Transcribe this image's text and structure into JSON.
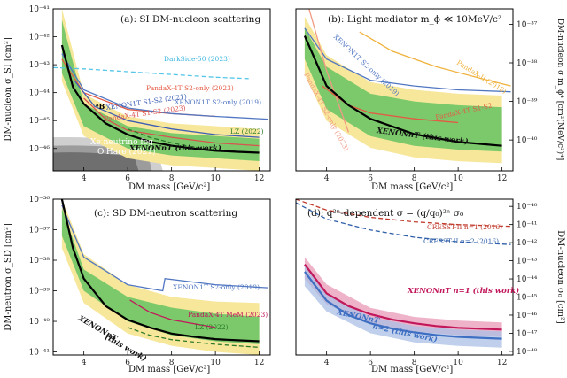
{
  "chart_data": [
    {
      "type": "line",
      "panel": "a",
      "title": "(a): SI DM-nucleon scattering",
      "xlabel": "DM mass [GeV/c²]",
      "ylabel": "DM-nucleon σ_SI [cm²]",
      "xlim": [
        2.6,
        12.5
      ],
      "ylim_log10": [
        -46.8,
        -41
      ],
      "xticks": [
        "4",
        "6",
        "8",
        "10",
        "12"
      ],
      "yticks": [
        "10⁻⁴¹",
        "10⁻⁴²",
        "10⁻⁴³",
        "10⁻⁴⁴",
        "10⁻⁴⁵",
        "10⁻⁴⁶"
      ],
      "fog_label": [
        "Xe neutrino fog",
        "O'Hare (2021)"
      ],
      "boron_label": "⁸B",
      "band2": {
        "x": [
          3,
          4,
          6,
          8,
          10,
          12
        ],
        "lo": [
          -43.6,
          -45.55,
          -46.35,
          -46.6,
          -46.7,
          -46.8
        ],
        "hi": [
          -41,
          -44.05,
          -44.85,
          -45.1,
          -45.2,
          -45.3
        ]
      },
      "band1": {
        "x": [
          3,
          4,
          6,
          8,
          10,
          12
        ],
        "lo": [
          -43.3,
          -45.2,
          -46.0,
          -46.25,
          -46.35,
          -46.45
        ],
        "hi": [
          -41.4,
          -44.4,
          -45.2,
          -45.45,
          -45.55,
          -45.65
        ]
      },
      "series": [
        {
          "name": "XENONnT (this work)",
          "x": [
            3,
            3.5,
            4,
            5,
            6,
            7,
            8,
            9,
            10,
            11,
            12
          ],
          "y": [
            -42.3,
            -43.8,
            -44.4,
            -45.1,
            -45.5,
            -45.75,
            -45.9,
            -46.0,
            -46.08,
            -46.12,
            -46.15
          ],
          "color": "#000000"
        },
        {
          "name": "DarkSide-50 (2023)",
          "x": [
            2.6,
            4,
            6,
            8,
            10,
            11.6
          ],
          "y": [
            -43.1,
            -43.15,
            -43.25,
            -43.35,
            -43.45,
            -43.5
          ],
          "color": "#55c6e8",
          "dash": true
        },
        {
          "name": "PandaX-4T S2-only (2023)",
          "x": [
            3,
            4,
            6,
            8,
            10
          ],
          "y": [
            -42.8,
            -44.0,
            -44.6,
            -44.75,
            -44.85
          ],
          "color": "#e45a43"
        },
        {
          "name": "XENON1T S2-only (2019)",
          "x": [
            3,
            4,
            6,
            8,
            10,
            12.4
          ],
          "y": [
            -42.6,
            -43.9,
            -44.55,
            -44.75,
            -44.85,
            -44.95
          ],
          "color": "#5177c2"
        },
        {
          "name": "XENON1T S1-S2 (2021)",
          "x": [
            3.6,
            4.5,
            6,
            8,
            10,
            12
          ],
          "y": [
            -43.6,
            -44.5,
            -45.0,
            -45.3,
            -45.5,
            -45.6
          ],
          "color": "#3f5fb5"
        },
        {
          "name": "PandaX-4T S1-S2 (2023)",
          "x": [
            4.0,
            5,
            6,
            8,
            10,
            12
          ],
          "y": [
            -44.2,
            -44.95,
            -45.35,
            -45.6,
            -45.8,
            -45.9
          ],
          "color": "#d9534f"
        },
        {
          "name": "LZ (2022)",
          "x": [
            6,
            7,
            8,
            9,
            10,
            11,
            12
          ],
          "y": [
            -45.3,
            -45.6,
            -45.8,
            -45.95,
            -46.05,
            -46.1,
            -46.15
          ],
          "color": "#2a7a2a",
          "dash": true
        }
      ]
    },
    {
      "type": "line",
      "panel": "b",
      "title": "(b): Light mediator m_ϕ ≪ 10MeV/c²",
      "xlabel": "DM mass [GeV/c²]",
      "ylabel": "DM-nucleon σ m_ϕ⁴ [cm²(MeV/c²)⁴]",
      "xlim": [
        2.6,
        12.5
      ],
      "ylim_log10": [
        -40.8,
        -36.6
      ],
      "xticks": [
        "4",
        "6",
        "8",
        "10",
        "12"
      ],
      "yticks": [
        "10⁻³⁷",
        "10⁻³⁸",
        "10⁻³⁹",
        "10⁻⁴⁰"
      ],
      "band2": {
        "x": [
          3,
          4,
          6,
          8,
          10,
          12
        ],
        "lo": [
          -38.3,
          -39.5,
          -40.2,
          -40.45,
          -40.55,
          -40.6
        ],
        "hi": [
          -36.8,
          -37.8,
          -38.5,
          -38.7,
          -38.8,
          -38.85
        ]
      },
      "band1": {
        "x": [
          3,
          4,
          6,
          8,
          10,
          12
        ],
        "lo": [
          -37.9,
          -39.2,
          -39.9,
          -40.15,
          -40.25,
          -40.3
        ],
        "hi": [
          -37.1,
          -38.1,
          -38.8,
          -39.0,
          -39.1,
          -39.15
        ]
      },
      "series": [
        {
          "name": "XENONnT (this work)",
          "x": [
            3,
            4,
            5,
            6,
            7,
            8,
            9,
            10,
            11,
            12
          ],
          "y": [
            -37.3,
            -38.6,
            -39.1,
            -39.45,
            -39.65,
            -39.85,
            -39.95,
            -40.05,
            -40.1,
            -40.15
          ],
          "color": "#000000"
        },
        {
          "name": "XENON1T S2-only (2019)",
          "x": [
            3,
            4,
            6,
            8,
            10,
            12.4
          ],
          "y": [
            -37.1,
            -37.9,
            -38.45,
            -38.6,
            -38.7,
            -38.75
          ],
          "color": "#5177c2"
        },
        {
          "name": "PandaX-II (2018)",
          "x": [
            5.5,
            7,
            9,
            11,
            12.4
          ],
          "y": [
            -37.2,
            -37.7,
            -38.1,
            -38.4,
            -38.6
          ],
          "color": "#f0b23c"
        },
        {
          "name": "PandaX-4T S2-only (2023)",
          "x": [
            3.2,
            4,
            5
          ],
          "y": [
            -36.6,
            -38.2,
            -39.8
          ],
          "color": "#f19a83"
        },
        {
          "name": "PandaX-4T S1-S2 (2023)",
          "x": [
            3.8,
            5,
            6,
            8,
            10
          ],
          "y": [
            -38.6,
            -39.1,
            -39.3,
            -39.45,
            -39.55
          ],
          "color": "#e45a43"
        }
      ]
    },
    {
      "type": "line",
      "panel": "c",
      "title": "(c): SD DM-neutron scattering",
      "xlabel": "DM mass [GeV/c²]",
      "ylabel": "DM-neutron σ_SD [cm²]",
      "xlim": [
        2.6,
        12.5
      ],
      "ylim_log10": [
        -41.1,
        -36
      ],
      "xticks": [
        "4",
        "6",
        "8",
        "10",
        "12"
      ],
      "yticks": [
        "10⁻³⁶",
        "10⁻³⁷",
        "10⁻³⁸",
        "10⁻³⁹",
        "10⁻⁴⁰",
        "10⁻⁴¹"
      ],
      "band2": {
        "x": [
          3,
          4,
          6,
          8,
          10,
          12
        ],
        "lo": [
          -37.6,
          -39.4,
          -40.4,
          -40.8,
          -41.0,
          -41.1
        ],
        "hi": [
          -36,
          -37.8,
          -38.8,
          -39.2,
          -39.35,
          -39.4
        ]
      },
      "band1": {
        "x": [
          3,
          4,
          6,
          8,
          10,
          12
        ],
        "lo": [
          -37.2,
          -39.0,
          -40.0,
          -40.45,
          -40.65,
          -40.75
        ],
        "hi": [
          -36.3,
          -38.3,
          -39.2,
          -39.55,
          -39.75,
          -39.85
        ]
      },
      "series": [
        {
          "name": "XENONnT (this work)",
          "x": [
            3,
            3.5,
            4,
            5,
            6,
            7,
            8,
            9,
            10,
            11,
            12
          ],
          "y": [
            -36.0,
            -37.6,
            -38.6,
            -39.5,
            -39.95,
            -40.2,
            -40.4,
            -40.5,
            -40.58,
            -40.62,
            -40.65
          ],
          "color": "#000000"
        },
        {
          "name": "XENON1T S2-only (2019)",
          "x": [
            3,
            4,
            6,
            7.6,
            7.7,
            10,
            12.4
          ],
          "y": [
            -36.2,
            -37.9,
            -38.8,
            -39.0,
            -38.6,
            -38.8,
            -38.9
          ],
          "color": "#5177c2"
        },
        {
          "name": "PandaX-4T MeM (2023)",
          "x": [
            6.1,
            7,
            8,
            10
          ],
          "y": [
            -39.3,
            -39.7,
            -39.95,
            -40.2
          ],
          "color": "#c2185b"
        },
        {
          "name": "LZ (2022)",
          "x": [
            6,
            7,
            8,
            10,
            12
          ],
          "y": [
            -40.2,
            -40.45,
            -40.6,
            -40.75,
            -40.85
          ],
          "color": "#2a7a2a",
          "dash": true
        }
      ]
    },
    {
      "type": "line",
      "panel": "d",
      "title": "(d): q²ⁿ-dependent σ = (q/q₀)²ⁿ σ₀",
      "xlabel": "DM mass [GeV/c²]",
      "ylabel": "DM-nucleon σ₀ [cm²]",
      "xlim": [
        2.6,
        12.5
      ],
      "ylim_log10": [
        -48.2,
        -39.6
      ],
      "xticks": [
        "4",
        "6",
        "8",
        "10",
        "12"
      ],
      "yticks": [
        "10⁻⁴⁰",
        "10⁻⁴¹",
        "10⁻⁴²",
        "10⁻⁴³",
        "10⁻⁴⁴",
        "10⁻⁴⁵",
        "10⁻⁴⁶",
        "10⁻⁴⁷",
        "10⁻⁴⁸"
      ],
      "series": [
        {
          "name": "CRESST-II n=1 (2016)",
          "x": [
            2.6,
            4,
            6,
            8,
            10,
            12.4
          ],
          "y": [
            -39.6,
            -40.2,
            -40.6,
            -40.85,
            -41.0,
            -41.1
          ],
          "color": "#c0392b",
          "dash": true
        },
        {
          "name": "CRESST-II n=2 (2016)",
          "x": [
            2.6,
            4,
            6,
            8,
            10,
            12.4
          ],
          "y": [
            -39.8,
            -40.7,
            -41.3,
            -41.7,
            -41.95,
            -42.1
          ],
          "color": "#2f5faa",
          "dash": true
        },
        {
          "name": "XENONnT n=1 (this work)",
          "x": [
            3,
            4,
            5,
            6,
            7,
            8,
            9,
            10,
            11,
            12
          ],
          "y": [
            -43.2,
            -44.8,
            -45.5,
            -45.95,
            -46.25,
            -46.45,
            -46.6,
            -46.7,
            -46.75,
            -46.8
          ],
          "color": "#c2185b"
        },
        {
          "name": "XENONnT n=2 (this work)",
          "x": [
            3,
            4,
            5,
            6,
            7,
            8,
            9,
            10,
            11,
            12
          ],
          "y": [
            -43.6,
            -45.2,
            -46.0,
            -46.45,
            -46.75,
            -46.95,
            -47.1,
            -47.2,
            -47.25,
            -47.3
          ],
          "color": "#3f6fc2"
        }
      ],
      "bandRed": {
        "x": [
          3,
          4,
          6,
          8,
          10,
          12
        ],
        "lo": [
          -44.0,
          -45.4,
          -46.5,
          -46.9,
          -47.1,
          -47.2
        ],
        "hi": [
          -42.8,
          -44.3,
          -45.6,
          -46.1,
          -46.3,
          -46.4
        ]
      },
      "bandBlue": {
        "x": [
          3,
          4,
          6,
          8,
          10,
          12
        ],
        "lo": [
          -44.4,
          -45.8,
          -47.0,
          -47.5,
          -47.7,
          -47.8
        ],
        "hi": [
          -43.2,
          -44.8,
          -46.1,
          -46.6,
          -46.8,
          -46.9
        ]
      }
    }
  ],
  "labels": {
    "a": {
      "darkside": "DarkSide-50 (2023)",
      "pandax_s2": "PandaX-4T S2-only (2023)",
      "x1t_s2": "XENON1T S2-only (2019)",
      "x1t_s1s2": "XENON1T S1-S2 (2021)",
      "pandax_s1s2": "PandaX-4T S1-S2 (2023)",
      "lz": "LZ (2022)",
      "xnt": "XENONnT (this work)"
    },
    "b": {
      "x1t_s2": "XENON1T S2-only (2019)",
      "pandax2": "PandaX-II (2018)",
      "pandax_s2": "PandaX-4T S2-only (2023)",
      "pandax_s1s2": "PandaX-4T S1-S2",
      "xnt": "XENONnT (this work)"
    },
    "c": {
      "x1t_s2": "XENON1T S2-only (2019)",
      "pandax_mem": "PandaX-4T MeM (2023)",
      "lz": "LZ (2022)",
      "xnt1": "XENONnT",
      "xnt2": "(this work)"
    },
    "d": {
      "cresst1": "CRESST-II n=1 (2016)",
      "cresst2": "CRESST-II n=2 (2016)",
      "xnt1": "XENONnT n=1 (this work)",
      "xnt2a": "XENONnT",
      "xnt2b": "n=2 (this work)"
    }
  }
}
